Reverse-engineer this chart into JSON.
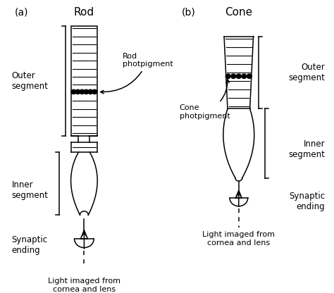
{
  "background_color": "#ffffff",
  "figsize": [
    4.74,
    4.16
  ],
  "dpi": 100,
  "rod": {
    "title": "Rod",
    "label_a": "(a)",
    "outer_seg_label": "Outer\nsegment",
    "inner_seg_label": "Inner\nsegment",
    "synaptic_label": "Synaptic\nending",
    "light_label": "Light imaged from\ncornea and lens",
    "photopigment_label": "Rod\nphotpigment"
  },
  "cone": {
    "title": "Cone",
    "label_b": "(b)",
    "outer_seg_label": "Outer\nsegment",
    "inner_seg_label": "Inner\nsegment",
    "synaptic_label": "Synaptic\nending",
    "light_label": "Light imaged from\ncornea and lens",
    "photopigment_label": "Cone\nphotpigment"
  }
}
